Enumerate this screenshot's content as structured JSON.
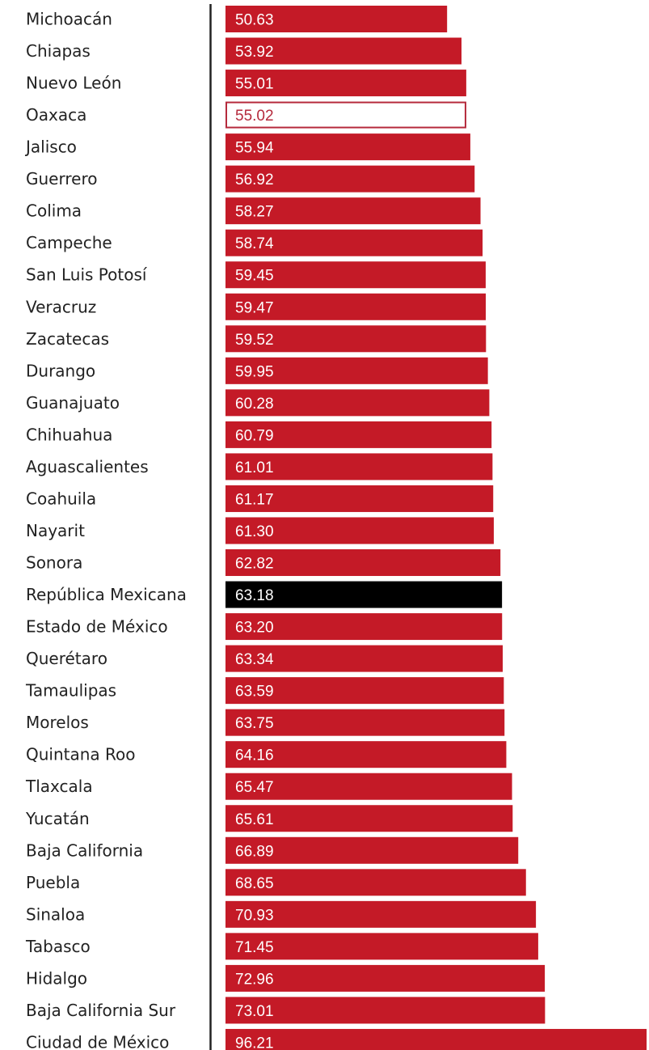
{
  "chart_data": {
    "type": "bar",
    "orientation": "horizontal",
    "title": "",
    "xlabel": "",
    "ylabel": "",
    "xlim": [
      0,
      96.21
    ],
    "grid": false,
    "legend": "none",
    "categories": [
      "Michoacán",
      "Chiapas",
      "Nuevo León",
      "Oaxaca",
      "Jalisco",
      "Guerrero",
      "Colima",
      "Campeche",
      "San Luis Potosí",
      "Veracruz",
      "Zacatecas",
      "Durango",
      "Guanajuato",
      "Chihuahua",
      "Aguascalientes",
      "Coahuila",
      "Nayarit",
      "Sonora",
      "República Mexicana",
      "Estado de México",
      "Querétaro",
      "Tamaulipas",
      "Morelos",
      "Quintana Roo",
      "Tlaxcala",
      "Yucatán",
      "Baja California",
      "Puebla",
      "Sinaloa",
      "Tabasco",
      "Hidalgo",
      "Baja California Sur",
      "Ciudad de México"
    ],
    "values": [
      50.63,
      53.92,
      55.01,
      55.02,
      55.94,
      56.92,
      58.27,
      58.74,
      59.45,
      59.47,
      59.52,
      59.95,
      60.28,
      60.79,
      61.01,
      61.17,
      61.3,
      62.82,
      63.18,
      63.2,
      63.34,
      63.59,
      63.75,
      64.16,
      65.47,
      65.61,
      66.89,
      68.65,
      70.93,
      71.45,
      72.96,
      73.01,
      96.21
    ],
    "value_labels": [
      "50.63",
      "53.92",
      "55.01",
      "55.02",
      "55.94",
      "56.92",
      "58.27",
      "58.74",
      "59.45",
      "59.47",
      "59.52",
      "59.95",
      "60.28",
      "60.79",
      "61.01",
      "61.17",
      "61.30",
      "62.82",
      "63.18",
      "63.20",
      "63.34",
      "63.59",
      "63.75",
      "64.16",
      "65.47",
      "65.61",
      "66.89",
      "68.65",
      "70.93",
      "71.45",
      "72.96",
      "73.01",
      "96.21"
    ],
    "colors": {
      "default": "#c41a27",
      "highlight_national": "#000000",
      "highlight_outline": "#b52a3c",
      "axis_line": "#222222"
    },
    "highlights": {
      "República Mexicana": "national",
      "Oaxaca": "outline"
    }
  }
}
